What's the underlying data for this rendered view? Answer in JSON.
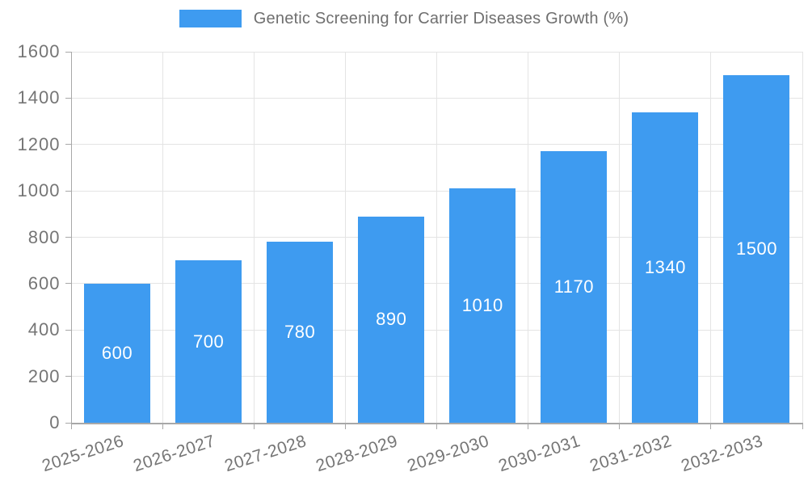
{
  "chart_data": {
    "type": "bar",
    "title": "Genetic Screening for Carrier Diseases Growth (%)",
    "xlabel": "",
    "ylabel": "",
    "categories": [
      "2025-2026",
      "2026-2027",
      "2027-2028",
      "2028-2029",
      "2029-2030",
      "2030-2031",
      "2031-2032",
      "2032-2033"
    ],
    "values": [
      600,
      700,
      780,
      890,
      1010,
      1170,
      1340,
      1500
    ],
    "value_labels": [
      "600",
      "700",
      "780",
      "890",
      "1010",
      "1170",
      "1340",
      "1500"
    ],
    "ylim": [
      0,
      1600
    ],
    "ytick_step": 200,
    "ytick_labels": [
      "0",
      "200",
      "400",
      "600",
      "800",
      "1000",
      "1200",
      "1400",
      "1600"
    ],
    "grid": "horizontal and vertical",
    "legend_position": "top-center",
    "colors": {
      "bar": "#3E9BF0",
      "value_label": "#ffffff",
      "tick_label": "#757575",
      "legend_text": "#6f6f6f",
      "grid_line": "#e4e4e4",
      "axis_line": "#a8a8a8",
      "background": "#ffffff"
    },
    "x_label_rotation_deg": -18
  }
}
